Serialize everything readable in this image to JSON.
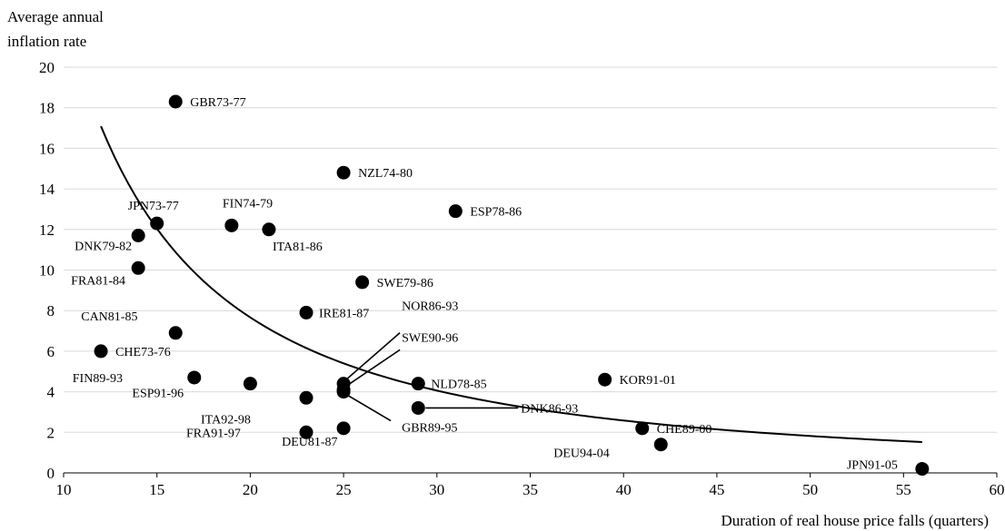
{
  "chart_data": {
    "type": "scatter",
    "ylabel_lines": [
      "Average annual",
      "inflation rate"
    ],
    "xlabel": "Duration of real house price falls (quarters)",
    "xlim": [
      10,
      60
    ],
    "ylim": [
      0,
      20
    ],
    "x_ticks": [
      10,
      15,
      20,
      25,
      30,
      35,
      40,
      45,
      50,
      55,
      60
    ],
    "y_ticks": [
      0,
      2,
      4,
      6,
      8,
      10,
      12,
      14,
      16,
      18,
      20
    ],
    "grid": "horizontal",
    "point_color": "#000000",
    "curve_color": "#000000",
    "points": [
      {
        "label": "GBR73-77",
        "x": 16,
        "y": 18.3
      },
      {
        "label": "NZL74-80",
        "x": 25,
        "y": 14.8
      },
      {
        "label": "ESP78-86",
        "x": 31,
        "y": 12.9
      },
      {
        "label": "JPN73-77",
        "x": 15,
        "y": 12.3
      },
      {
        "label": "FIN74-79",
        "x": 19,
        "y": 12.2
      },
      {
        "label": "ITA81-86",
        "x": 21,
        "y": 12.0
      },
      {
        "label": "DNK79-82",
        "x": 14,
        "y": 11.7
      },
      {
        "label": "FRA81-84",
        "x": 14,
        "y": 10.1
      },
      {
        "label": "SWE79-86",
        "x": 26,
        "y": 9.4
      },
      {
        "label": "IRE81-87",
        "x": 23,
        "y": 7.9
      },
      {
        "label": "CAN81-85",
        "x": 16,
        "y": 6.9
      },
      {
        "label": "CHE73-76",
        "x": 12,
        "y": 6.0
      },
      {
        "label": "NOR86-93",
        "x": 25,
        "y": 4.4
      },
      {
        "label": "SWE90-96",
        "x": 25,
        "y": 4.1
      },
      {
        "label": "FIN89-93",
        "x": 17,
        "y": 4.7
      },
      {
        "label": "ESP91-96",
        "x": 20,
        "y": 4.4
      },
      {
        "label": "NLD78-85",
        "x": 29,
        "y": 4.4
      },
      {
        "label": "KOR91-01",
        "x": 39,
        "y": 4.6
      },
      {
        "label": "ITA92-98",
        "x": 23,
        "y": 3.7
      },
      {
        "label": "GBR89-95",
        "x": 25,
        "y": 4.0
      },
      {
        "label": "DNK86-93",
        "x": 29,
        "y": 3.2
      },
      {
        "label": "CHE89-00",
        "x": 41,
        "y": 2.2
      },
      {
        "label": "FRA91-97",
        "x": 23,
        "y": 2.0
      },
      {
        "label": "DEU81-87",
        "x": 25,
        "y": 2.2
      },
      {
        "label": "DEU94-04",
        "x": 42,
        "y": 1.4
      },
      {
        "label": "JPN91-05",
        "x": 56,
        "y": 0.2
      }
    ],
    "trend": {
      "type": "power",
      "x": [
        12,
        15,
        20,
        25,
        30,
        35,
        40,
        45,
        50,
        56
      ],
      "y": [
        15.7,
        11.4,
        7.7,
        5.7,
        4.4,
        3.6,
        2.9,
        2.3,
        1.7,
        1.2
      ]
    }
  }
}
